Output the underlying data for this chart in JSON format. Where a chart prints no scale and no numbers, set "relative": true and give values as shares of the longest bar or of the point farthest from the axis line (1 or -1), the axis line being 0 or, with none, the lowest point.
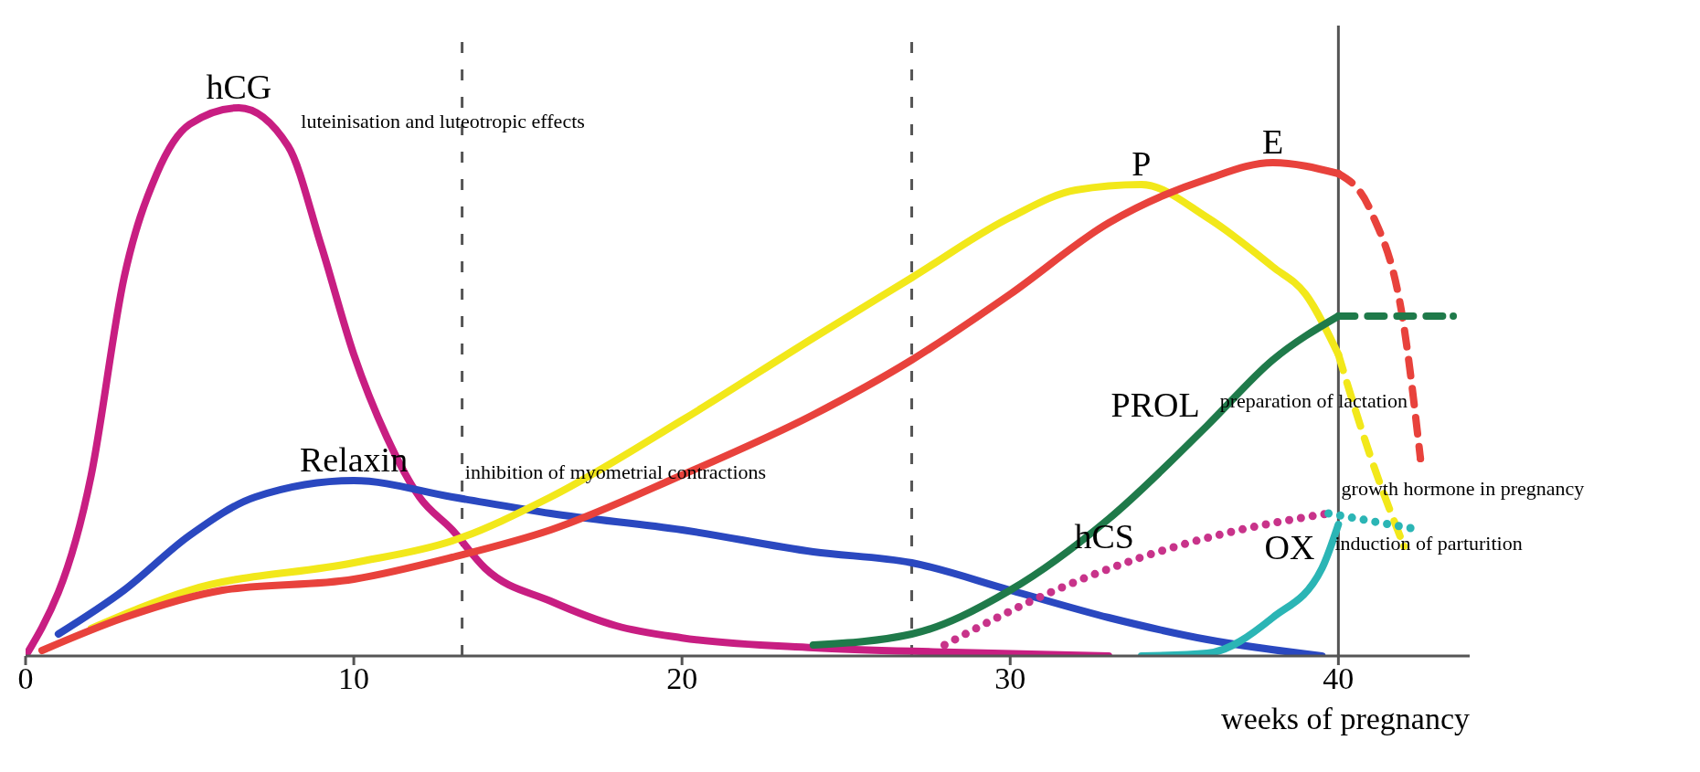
{
  "chart_data": {
    "type": "line",
    "relative": true,
    "xlabel": "weeks of pregnancy",
    "xlim": [
      0,
      44
    ],
    "xticks": [
      0,
      10,
      20,
      30,
      40
    ],
    "series": [
      {
        "name": "hCG",
        "color": "#c81e82",
        "x": [
          0,
          2,
          3,
          4,
          5,
          6.5,
          8,
          9,
          10,
          11,
          12,
          13,
          14,
          16,
          18,
          20,
          24,
          28,
          33
        ],
        "values": [
          0,
          0.33,
          0.69,
          0.88,
          0.97,
          1,
          0.93,
          0.75,
          0.55,
          0.4,
          0.29,
          0.23,
          0.16,
          0.1,
          0.055,
          0.033,
          0.015,
          0.007,
          0
        ]
      },
      {
        "name": "Relaxin",
        "color": "#2a48c0",
        "x": [
          1,
          3,
          5,
          7,
          10,
          13,
          16,
          20,
          24,
          27,
          30,
          33,
          36,
          39.5
        ],
        "values": [
          0.04,
          0.12,
          0.22,
          0.29,
          0.32,
          0.29,
          0.26,
          0.23,
          0.19,
          0.17,
          0.12,
          0.07,
          0.03,
          0
        ]
      },
      {
        "name": "P",
        "color": "#f2e81a",
        "x": [
          2,
          5,
          10,
          13,
          16,
          20,
          24,
          27,
          30,
          32,
          34,
          36,
          38,
          39,
          40
        ],
        "values": [
          0.05,
          0.12,
          0.17,
          0.21,
          0.29,
          0.43,
          0.58,
          0.69,
          0.8,
          0.85,
          0.86,
          0.8,
          0.71,
          0.66,
          0.55
        ]
      },
      {
        "color": "#f2e81a",
        "line_style": "dashed",
        "x": [
          40,
          41,
          42
        ],
        "values": [
          0.55,
          0.36,
          0.2
        ]
      },
      {
        "name": "E",
        "color": "#e8423c",
        "x": [
          0.5,
          3,
          6,
          10,
          13,
          16,
          20,
          24,
          27,
          30,
          33,
          36,
          38,
          40
        ],
        "values": [
          0.01,
          0.07,
          0.12,
          0.14,
          0.18,
          0.23,
          0.33,
          0.44,
          0.54,
          0.66,
          0.79,
          0.87,
          0.9,
          0.88
        ]
      },
      {
        "color": "#e8423c",
        "line_style": "dashed",
        "x": [
          40,
          41,
          42,
          42.5
        ],
        "values": [
          0.88,
          0.81,
          0.6,
          0.36
        ]
      },
      {
        "name": "PROL",
        "color": "#1f7a4a",
        "x": [
          24,
          27,
          30,
          33,
          36,
          38,
          40
        ],
        "values": [
          0.02,
          0.04,
          0.12,
          0.25,
          0.42,
          0.54,
          0.62
        ]
      },
      {
        "color": "#1f7a4a",
        "line_style": "dashed",
        "x": [
          40,
          43.5
        ],
        "values": [
          0.62,
          0.62
        ]
      },
      {
        "name": "hCS",
        "color": "#c8338a",
        "line_style": "dotted",
        "x": [
          28,
          31,
          34,
          37,
          39.7
        ],
        "values": [
          0.02,
          0.11,
          0.18,
          0.23,
          0.26
        ]
      },
      {
        "color": "#2bb5b5",
        "line_style": "dotted",
        "x": [
          39.7,
          42.5
        ],
        "values": [
          0.26,
          0.23
        ]
      },
      {
        "name": "OX",
        "color": "#2bb5b5",
        "x": [
          34,
          36,
          38,
          39.5,
          40
        ],
        "values": [
          0,
          0.005,
          0.07,
          0.16,
          0.24
        ]
      }
    ],
    "ref_lines": [
      {
        "axis": "x",
        "value": 13.3,
        "color": "#555555",
        "line_style": "dashed"
      },
      {
        "axis": "x",
        "value": 27,
        "color": "#555555",
        "line_style": "dashed"
      },
      {
        "axis": "x",
        "value": 40,
        "color": "#555555",
        "line_style": "solid"
      }
    ],
    "annotations": [
      {
        "text": "luteinisation and luteotropic effects",
        "x": 8,
        "y": 0.93
      },
      {
        "text": "inhibition of myometrial contractions",
        "x": 13,
        "y": 0.29
      },
      {
        "text": "preparation of lactation",
        "x": 36,
        "y": 0.42
      },
      {
        "text": "growth hormone in pregnancy",
        "x": 39.7,
        "y": 0.26
      },
      {
        "text": "induction of parturition",
        "x": 39.5,
        "y": 0.16
      }
    ]
  }
}
